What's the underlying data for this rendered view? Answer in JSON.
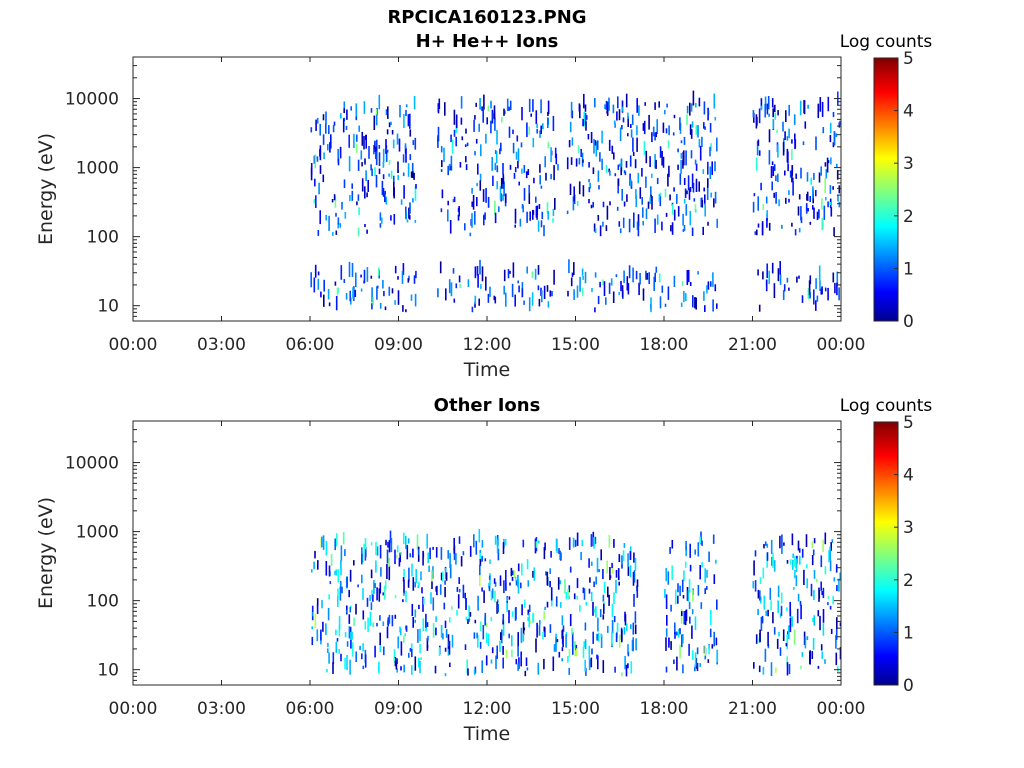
{
  "figure": {
    "title": "RPCICA160123.PNG"
  },
  "chart_data": [
    {
      "type": "heatmap",
      "title": "H+ He++ Ions",
      "xlabel": "Time",
      "ylabel": "Energy (eV)",
      "xticks": [
        "00:00",
        "03:00",
        "06:00",
        "09:00",
        "12:00",
        "15:00",
        "18:00",
        "21:00",
        "00:00"
      ],
      "xlim_hours": [
        0,
        24
      ],
      "yscale": "log",
      "ylim": [
        6,
        40000
      ],
      "yticks": [
        10,
        100,
        1000,
        10000
      ],
      "ytick_labels": [
        "10",
        "100",
        "1000",
        "10000"
      ],
      "colorbar": {
        "label": "Log counts",
        "range": [
          0,
          5
        ],
        "ticks": [
          "0",
          "1",
          "2",
          "3",
          "4",
          "5"
        ]
      },
      "activity_windows_hours": [
        [
          6.0,
          9.5
        ],
        [
          10.3,
          14.3
        ],
        [
          14.7,
          19.8
        ],
        [
          21.0,
          24.0
        ]
      ],
      "energy_bands_eV": [
        [
          8,
          30
        ],
        [
          100,
          8000
        ]
      ],
      "dominant_log_counts": [
        0,
        1.5
      ],
      "peak_log_counts": 2.5
    },
    {
      "type": "heatmap",
      "title": "Other Ions",
      "xlabel": "Time",
      "ylabel": "Energy (eV)",
      "xticks": [
        "00:00",
        "03:00",
        "06:00",
        "09:00",
        "12:00",
        "15:00",
        "18:00",
        "21:00",
        "00:00"
      ],
      "xlim_hours": [
        0,
        24
      ],
      "yscale": "log",
      "ylim": [
        6,
        40000
      ],
      "yticks": [
        10,
        100,
        1000,
        10000
      ],
      "ytick_labels": [
        "10",
        "100",
        "1000",
        "10000"
      ],
      "colorbar": {
        "label": "Log counts",
        "range": [
          0,
          5
        ],
        "ticks": [
          "0",
          "1",
          "2",
          "3",
          "4",
          "5"
        ]
      },
      "activity_windows_hours": [
        [
          6.0,
          17.0
        ],
        [
          18.0,
          19.8
        ],
        [
          21.0,
          24.0
        ]
      ],
      "energy_bands_eV": [
        [
          8,
          700
        ]
      ],
      "dominant_log_counts": [
        0,
        2
      ],
      "peak_log_counts": 2.8
    }
  ]
}
